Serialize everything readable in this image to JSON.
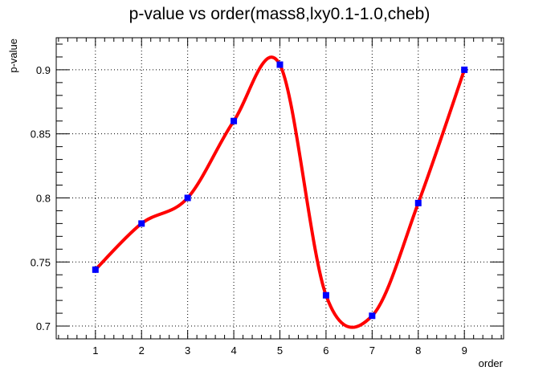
{
  "chart_data": {
    "type": "line",
    "title": "p-value vs order(mass8,lxy0.1-1.0,cheb)",
    "xlabel": "order",
    "ylabel": "p-value",
    "xlim": [
      0.15,
      9.85
    ],
    "ylim": [
      0.69,
      0.925
    ],
    "x_ticks": [
      1,
      2,
      3,
      4,
      5,
      6,
      7,
      8,
      9
    ],
    "y_ticks": [
      0.7,
      0.75,
      0.8,
      0.85,
      0.9
    ],
    "y_tick_labels": [
      "0.7",
      "0.75",
      "0.8",
      "0.85",
      "0.9"
    ],
    "grid": true,
    "series": [
      {
        "name": "p-value",
        "x": [
          1,
          2,
          3,
          4,
          5,
          6,
          7,
          8,
          9
        ],
        "values": [
          0.744,
          0.78,
          0.8,
          0.86,
          0.904,
          0.724,
          0.708,
          0.796,
          0.9
        ],
        "marker_color": "#0000ff",
        "line_color": "#ff0000"
      }
    ]
  }
}
